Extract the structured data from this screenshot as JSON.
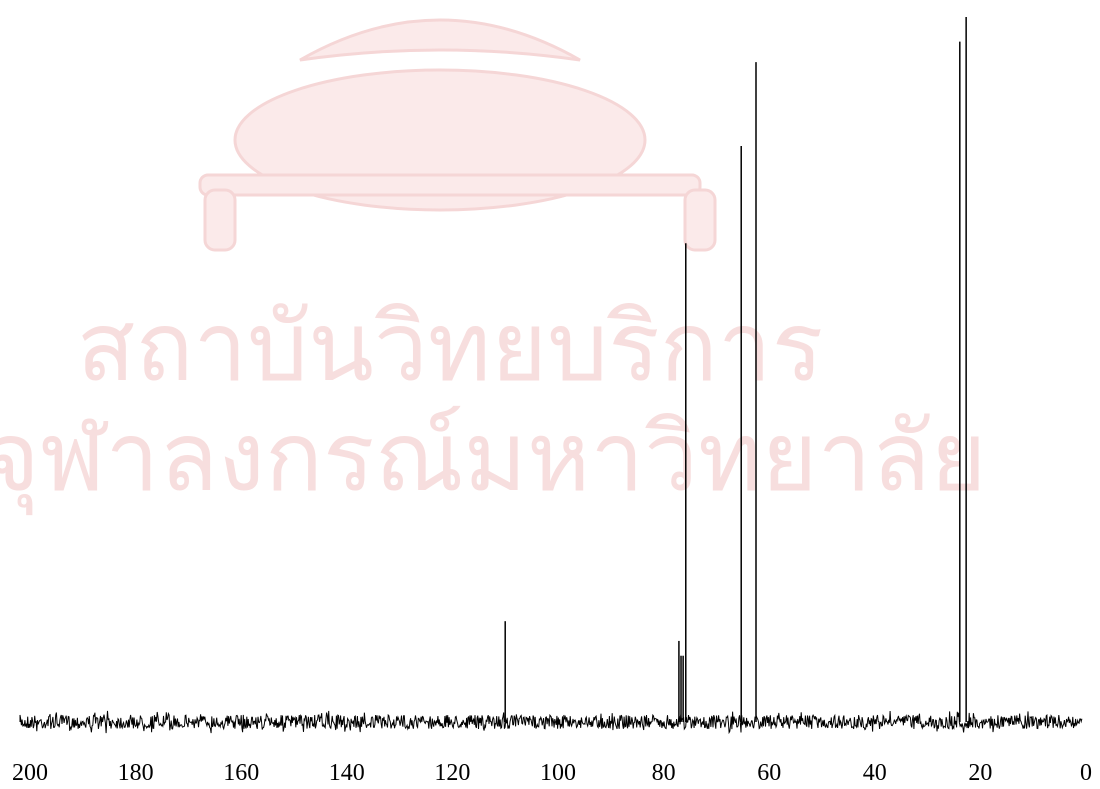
{
  "chart_data": {
    "type": "spectrum",
    "watermark": [
      "สถาบันวิทยบริการ",
      "จุฬาลงกรณ์มหาวิทยาลัย"
    ],
    "x": [
      110.0,
      77.1,
      76.7,
      76.3,
      75.8,
      65.3,
      62.5,
      23.9,
      22.7
    ],
    "values": [
      14.3,
      11.5,
      9.4,
      9.4,
      67.9,
      81.7,
      93.6,
      96.5,
      100
    ],
    "color": "#000000",
    "xlim": [
      200,
      0
    ],
    "xticks": [
      200,
      180,
      160,
      140,
      120,
      100,
      80,
      60,
      40,
      20,
      0
    ],
    "ylim": [
      0,
      100
    ],
    "grid": false
  }
}
